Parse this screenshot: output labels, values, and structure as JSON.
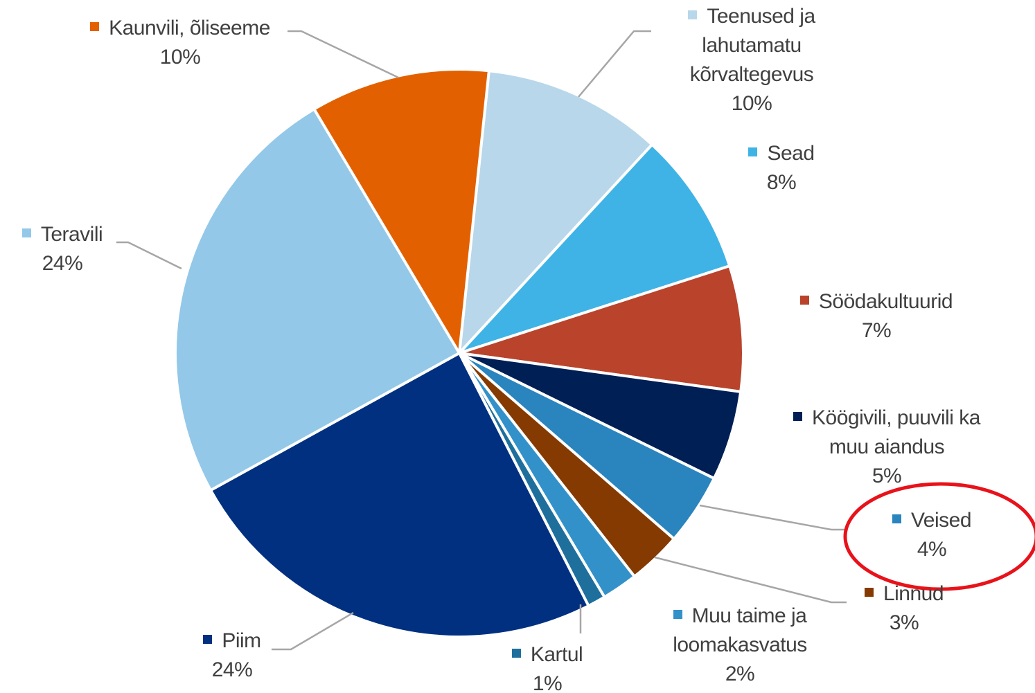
{
  "chart_data": {
    "type": "pie",
    "categories": [
      "Teenused ja lahutamatu kõrvaltegevus",
      "Sead",
      "Söödakultuurid",
      "Köögivili, puuvili ka muu aiandus",
      "Veised",
      "Linnud",
      "Muu taime ja loomakasvatus",
      "Kartul",
      "Piim",
      "Teravili",
      "Kaunvili, õliseeme"
    ],
    "values": [
      10,
      8,
      7,
      5,
      4,
      3,
      2,
      1,
      24,
      24,
      10
    ],
    "value_labels": [
      "10%",
      "8%",
      "7%",
      "5%",
      "4%",
      "3%",
      "2%",
      "1%",
      "24%",
      "24%",
      "10%"
    ],
    "colors": [
      "#b8d7ea",
      "#3fb3e5",
      "#b9432b",
      "#001f55",
      "#2a84be",
      "#843a00",
      "#3391c9",
      "#1f6f9c",
      "#00307f",
      "#93c8e8",
      "#e36000"
    ]
  }
}
